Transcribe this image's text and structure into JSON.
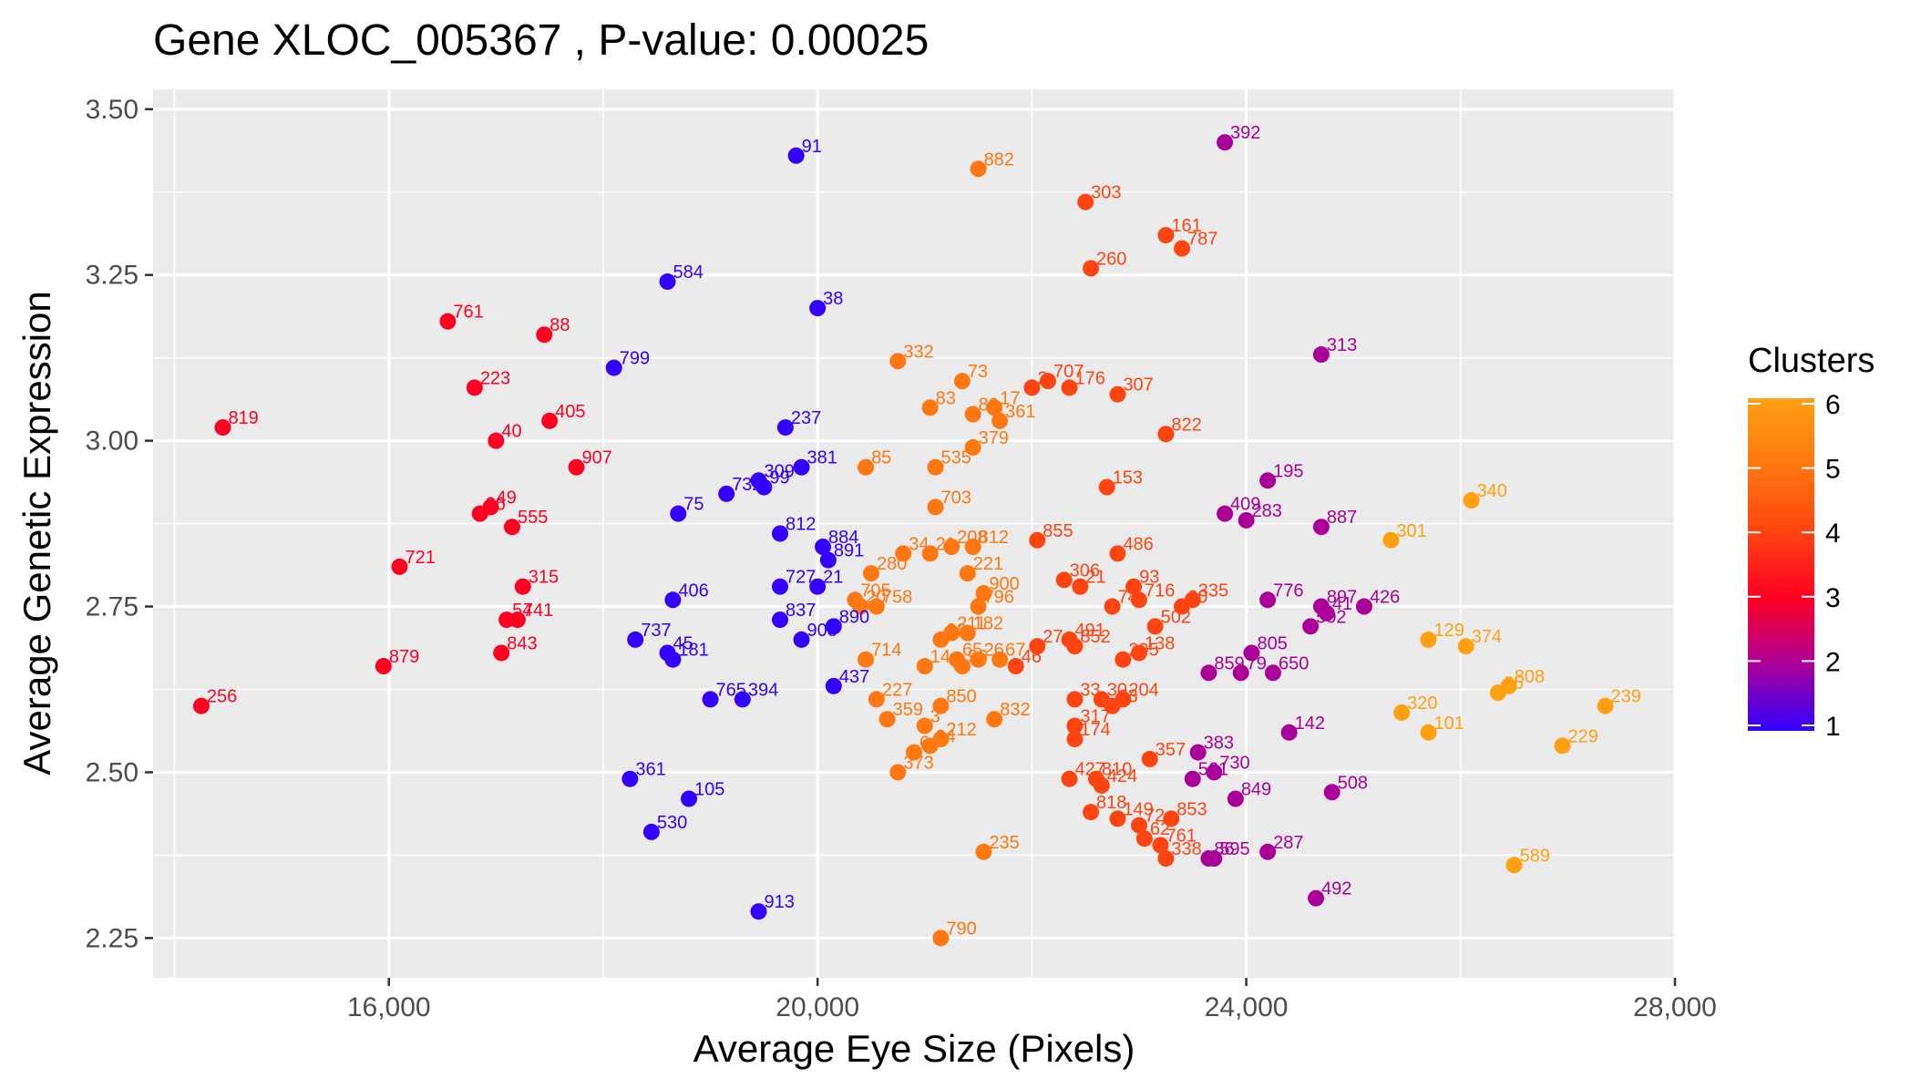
{
  "chart_data": {
    "type": "scatter",
    "title": "Gene XLOC_005367 , P-value: 0.00025",
    "xlabel": "Average Eye Size (Pixels)",
    "ylabel": "Average Genetic Expression",
    "xlim": [
      13800,
      28000
    ],
    "ylim": [
      2.19,
      3.53
    ],
    "x_ticks": [
      "16,000",
      "20,000",
      "24,000",
      "28,000"
    ],
    "y_ticks": [
      "2.25",
      "2.50",
      "2.75",
      "3.00",
      "3.25",
      "3.50"
    ],
    "grid": true,
    "legend": {
      "title": "Clusters",
      "position": "right",
      "ticks": [
        "1",
        "2",
        "3",
        "4",
        "5",
        "6"
      ],
      "colors": [
        "#3300ff",
        "#aa0099",
        "#ff0022",
        "#ff4411",
        "#ff7711",
        "#ffa011"
      ]
    },
    "points": [
      {
        "x": 19800,
        "y": 3.43,
        "label": "91",
        "cluster": 1
      },
      {
        "x": 18600,
        "y": 3.24,
        "label": "584",
        "cluster": 1
      },
      {
        "x": 20000,
        "y": 3.2,
        "label": "38",
        "cluster": 1
      },
      {
        "x": 18100,
        "y": 3.11,
        "label": "799",
        "cluster": 1
      },
      {
        "x": 19700,
        "y": 3.02,
        "label": "237",
        "cluster": 1
      },
      {
        "x": 19850,
        "y": 2.96,
        "label": "381",
        "cluster": 1
      },
      {
        "x": 19450,
        "y": 2.94,
        "label": "309",
        "cluster": 1
      },
      {
        "x": 19500,
        "y": 2.93,
        "label": "99",
        "cluster": 1
      },
      {
        "x": 19150,
        "y": 2.92,
        "label": "732",
        "cluster": 1
      },
      {
        "x": 18700,
        "y": 2.89,
        "label": "75",
        "cluster": 1
      },
      {
        "x": 19650,
        "y": 2.86,
        "label": "812",
        "cluster": 1
      },
      {
        "x": 20050,
        "y": 2.84,
        "label": "884",
        "cluster": 1
      },
      {
        "x": 20100,
        "y": 2.82,
        "label": "891",
        "cluster": 1
      },
      {
        "x": 19650,
        "y": 2.78,
        "label": "727",
        "cluster": 1
      },
      {
        "x": 20000,
        "y": 2.78,
        "label": "21",
        "cluster": 1
      },
      {
        "x": 18650,
        "y": 2.76,
        "label": "406",
        "cluster": 1
      },
      {
        "x": 19650,
        "y": 2.73,
        "label": "837",
        "cluster": 1
      },
      {
        "x": 20150,
        "y": 2.72,
        "label": "890",
        "cluster": 1
      },
      {
        "x": 19850,
        "y": 2.7,
        "label": "908",
        "cluster": 1
      },
      {
        "x": 18300,
        "y": 2.7,
        "label": "737",
        "cluster": 1
      },
      {
        "x": 18600,
        "y": 2.68,
        "label": "45",
        "cluster": 1
      },
      {
        "x": 18650,
        "y": 2.67,
        "label": "181",
        "cluster": 1
      },
      {
        "x": 20150,
        "y": 2.63,
        "label": "437",
        "cluster": 1
      },
      {
        "x": 19000,
        "y": 2.61,
        "label": "765",
        "cluster": 1
      },
      {
        "x": 19300,
        "y": 2.61,
        "label": "394",
        "cluster": 1
      },
      {
        "x": 18250,
        "y": 2.49,
        "label": "361",
        "cluster": 1
      },
      {
        "x": 18800,
        "y": 2.46,
        "label": "105",
        "cluster": 1
      },
      {
        "x": 18450,
        "y": 2.41,
        "label": "530",
        "cluster": 1
      },
      {
        "x": 19450,
        "y": 2.29,
        "label": "913",
        "cluster": 1
      },
      {
        "x": 23800,
        "y": 3.45,
        "label": "392",
        "cluster": 2
      },
      {
        "x": 24700,
        "y": 3.13,
        "label": "313",
        "cluster": 2
      },
      {
        "x": 24200,
        "y": 2.94,
        "label": "195",
        "cluster": 2
      },
      {
        "x": 23800,
        "y": 2.89,
        "label": "409",
        "cluster": 2
      },
      {
        "x": 24000,
        "y": 2.88,
        "label": "283",
        "cluster": 2
      },
      {
        "x": 24700,
        "y": 2.87,
        "label": "887",
        "cluster": 2
      },
      {
        "x": 24200,
        "y": 2.76,
        "label": "776",
        "cluster": 2
      },
      {
        "x": 24700,
        "y": 2.75,
        "label": "897",
        "cluster": 2
      },
      {
        "x": 24750,
        "y": 2.74,
        "label": "41",
        "cluster": 2
      },
      {
        "x": 25100,
        "y": 2.75,
        "label": "426",
        "cluster": 2
      },
      {
        "x": 24600,
        "y": 2.72,
        "label": "502",
        "cluster": 2
      },
      {
        "x": 24050,
        "y": 2.68,
        "label": "805",
        "cluster": 2
      },
      {
        "x": 23650,
        "y": 2.65,
        "label": "859",
        "cluster": 2
      },
      {
        "x": 23950,
        "y": 2.65,
        "label": "79",
        "cluster": 2
      },
      {
        "x": 24250,
        "y": 2.65,
        "label": "650",
        "cluster": 2
      },
      {
        "x": 24400,
        "y": 2.56,
        "label": "142",
        "cluster": 2
      },
      {
        "x": 23550,
        "y": 2.53,
        "label": "383",
        "cluster": 2
      },
      {
        "x": 23700,
        "y": 2.5,
        "label": "730",
        "cluster": 2
      },
      {
        "x": 23500,
        "y": 2.49,
        "label": "561",
        "cluster": 2
      },
      {
        "x": 24800,
        "y": 2.47,
        "label": "508",
        "cluster": 2
      },
      {
        "x": 23900,
        "y": 2.46,
        "label": "849",
        "cluster": 2
      },
      {
        "x": 24200,
        "y": 2.38,
        "label": "287",
        "cluster": 2
      },
      {
        "x": 23700,
        "y": 2.37,
        "label": "595",
        "cluster": 2
      },
      {
        "x": 23650,
        "y": 2.37,
        "label": "86",
        "cluster": 2
      },
      {
        "x": 24650,
        "y": 2.31,
        "label": "492",
        "cluster": 2
      },
      {
        "x": 16550,
        "y": 3.18,
        "label": "761",
        "cluster": 3
      },
      {
        "x": 17450,
        "y": 3.16,
        "label": "88",
        "cluster": 3
      },
      {
        "x": 16800,
        "y": 3.08,
        "label": "223",
        "cluster": 3
      },
      {
        "x": 17500,
        "y": 3.03,
        "label": "405",
        "cluster": 3
      },
      {
        "x": 14450,
        "y": 3.02,
        "label": "819",
        "cluster": 3
      },
      {
        "x": 17000,
        "y": 3.0,
        "label": "40",
        "cluster": 3
      },
      {
        "x": 17750,
        "y": 2.96,
        "label": "907",
        "cluster": 3
      },
      {
        "x": 16950,
        "y": 2.9,
        "label": "49",
        "cluster": 3
      },
      {
        "x": 16850,
        "y": 2.89,
        "label": "36",
        "cluster": 3
      },
      {
        "x": 17150,
        "y": 2.87,
        "label": "555",
        "cluster": 3
      },
      {
        "x": 16100,
        "y": 2.81,
        "label": "721",
        "cluster": 3
      },
      {
        "x": 17250,
        "y": 2.78,
        "label": "315",
        "cluster": 3
      },
      {
        "x": 17100,
        "y": 2.73,
        "label": "54",
        "cluster": 3
      },
      {
        "x": 17200,
        "y": 2.73,
        "label": "741",
        "cluster": 3
      },
      {
        "x": 17050,
        "y": 2.68,
        "label": "843",
        "cluster": 3
      },
      {
        "x": 15950,
        "y": 2.66,
        "label": "879",
        "cluster": 3
      },
      {
        "x": 14250,
        "y": 2.6,
        "label": "256",
        "cluster": 3
      },
      {
        "x": 22500,
        "y": 3.36,
        "label": "303",
        "cluster": 4
      },
      {
        "x": 23250,
        "y": 3.31,
        "label": "161",
        "cluster": 4
      },
      {
        "x": 23400,
        "y": 3.29,
        "label": "787",
        "cluster": 4
      },
      {
        "x": 22550,
        "y": 3.26,
        "label": "260",
        "cluster": 4
      },
      {
        "x": 22150,
        "y": 3.09,
        "label": "707",
        "cluster": 4
      },
      {
        "x": 22350,
        "y": 3.08,
        "label": "176",
        "cluster": 4
      },
      {
        "x": 22000,
        "y": 3.08,
        "label": "2",
        "cluster": 4
      },
      {
        "x": 22800,
        "y": 3.07,
        "label": "307",
        "cluster": 4
      },
      {
        "x": 23250,
        "y": 3.01,
        "label": "822",
        "cluster": 4
      },
      {
        "x": 22700,
        "y": 2.93,
        "label": "153",
        "cluster": 4
      },
      {
        "x": 22050,
        "y": 2.85,
        "label": "855",
        "cluster": 4
      },
      {
        "x": 22800,
        "y": 2.83,
        "label": "486",
        "cluster": 4
      },
      {
        "x": 22300,
        "y": 2.79,
        "label": "306",
        "cluster": 4
      },
      {
        "x": 22450,
        "y": 2.78,
        "label": "21",
        "cluster": 4
      },
      {
        "x": 22950,
        "y": 2.78,
        "label": "93",
        "cluster": 4
      },
      {
        "x": 23000,
        "y": 2.76,
        "label": "716",
        "cluster": 4
      },
      {
        "x": 23500,
        "y": 2.76,
        "label": "335",
        "cluster": 4
      },
      {
        "x": 22750,
        "y": 2.75,
        "label": "74",
        "cluster": 4
      },
      {
        "x": 23400,
        "y": 2.75,
        "label": "60",
        "cluster": 4
      },
      {
        "x": 23150,
        "y": 2.72,
        "label": "502",
        "cluster": 4
      },
      {
        "x": 22350,
        "y": 2.7,
        "label": "491",
        "cluster": 4
      },
      {
        "x": 22400,
        "y": 2.69,
        "label": "852",
        "cluster": 4
      },
      {
        "x": 22050,
        "y": 2.69,
        "label": "27",
        "cluster": 4
      },
      {
        "x": 23000,
        "y": 2.68,
        "label": "138",
        "cluster": 4
      },
      {
        "x": 22850,
        "y": 2.67,
        "label": "295",
        "cluster": 4
      },
      {
        "x": 21850,
        "y": 2.66,
        "label": "46",
        "cluster": 4
      },
      {
        "x": 22400,
        "y": 2.61,
        "label": "33",
        "cluster": 4
      },
      {
        "x": 22650,
        "y": 2.61,
        "label": "30",
        "cluster": 4
      },
      {
        "x": 22850,
        "y": 2.61,
        "label": "204",
        "cluster": 4
      },
      {
        "x": 22750,
        "y": 2.6,
        "label": "03",
        "cluster": 4
      },
      {
        "x": 22400,
        "y": 2.57,
        "label": "317",
        "cluster": 4
      },
      {
        "x": 22400,
        "y": 2.55,
        "label": "174",
        "cluster": 4
      },
      {
        "x": 23100,
        "y": 2.52,
        "label": "357",
        "cluster": 4
      },
      {
        "x": 22350,
        "y": 2.49,
        "label": "427",
        "cluster": 4
      },
      {
        "x": 22600,
        "y": 2.49,
        "label": "810",
        "cluster": 4
      },
      {
        "x": 22650,
        "y": 2.48,
        "label": "424",
        "cluster": 4
      },
      {
        "x": 22550,
        "y": 2.44,
        "label": "818",
        "cluster": 4
      },
      {
        "x": 22800,
        "y": 2.43,
        "label": "149",
        "cluster": 4
      },
      {
        "x": 23000,
        "y": 2.42,
        "label": "72",
        "cluster": 4
      },
      {
        "x": 23300,
        "y": 2.43,
        "label": "853",
        "cluster": 4
      },
      {
        "x": 23050,
        "y": 2.4,
        "label": "62",
        "cluster": 4
      },
      {
        "x": 23200,
        "y": 2.39,
        "label": "761",
        "cluster": 4
      },
      {
        "x": 23250,
        "y": 2.37,
        "label": "338",
        "cluster": 4
      },
      {
        "x": 21500,
        "y": 3.41,
        "label": "882",
        "cluster": 5
      },
      {
        "x": 20750,
        "y": 3.12,
        "label": "332",
        "cluster": 5
      },
      {
        "x": 21350,
        "y": 3.09,
        "label": "73",
        "cluster": 5
      },
      {
        "x": 21050,
        "y": 3.05,
        "label": "83",
        "cluster": 5
      },
      {
        "x": 21650,
        "y": 3.05,
        "label": "17",
        "cluster": 5
      },
      {
        "x": 21450,
        "y": 3.04,
        "label": "80",
        "cluster": 5
      },
      {
        "x": 21700,
        "y": 3.03,
        "label": "361",
        "cluster": 5
      },
      {
        "x": 21450,
        "y": 2.99,
        "label": "379",
        "cluster": 5
      },
      {
        "x": 20450,
        "y": 2.96,
        "label": "85",
        "cluster": 5
      },
      {
        "x": 21100,
        "y": 2.96,
        "label": "535",
        "cluster": 5
      },
      {
        "x": 21100,
        "y": 2.9,
        "label": "703",
        "cluster": 5
      },
      {
        "x": 21450,
        "y": 2.84,
        "label": "812",
        "cluster": 5
      },
      {
        "x": 21250,
        "y": 2.84,
        "label": "208",
        "cluster": 5
      },
      {
        "x": 21050,
        "y": 2.83,
        "label": "21",
        "cluster": 5
      },
      {
        "x": 20800,
        "y": 2.83,
        "label": "34",
        "cluster": 5
      },
      {
        "x": 20500,
        "y": 2.8,
        "label": "280",
        "cluster": 5
      },
      {
        "x": 21400,
        "y": 2.8,
        "label": "221",
        "cluster": 5
      },
      {
        "x": 21550,
        "y": 2.77,
        "label": "900",
        "cluster": 5
      },
      {
        "x": 20350,
        "y": 2.76,
        "label": "705",
        "cluster": 5
      },
      {
        "x": 20550,
        "y": 2.75,
        "label": "758",
        "cluster": 5
      },
      {
        "x": 20400,
        "y": 2.75,
        "label": "20",
        "cluster": 5
      },
      {
        "x": 21500,
        "y": 2.75,
        "label": "796",
        "cluster": 5
      },
      {
        "x": 21250,
        "y": 2.71,
        "label": "211",
        "cluster": 5
      },
      {
        "x": 21400,
        "y": 2.71,
        "label": "182",
        "cluster": 5
      },
      {
        "x": 21150,
        "y": 2.7,
        "label": "22",
        "cluster": 5
      },
      {
        "x": 20450,
        "y": 2.67,
        "label": "714",
        "cluster": 5
      },
      {
        "x": 21000,
        "y": 2.66,
        "label": "14",
        "cluster": 5
      },
      {
        "x": 21300,
        "y": 2.67,
        "label": "65",
        "cluster": 5
      },
      {
        "x": 21500,
        "y": 2.67,
        "label": "26",
        "cluster": 5
      },
      {
        "x": 21700,
        "y": 2.67,
        "label": "67",
        "cluster": 5
      },
      {
        "x": 21350,
        "y": 2.66,
        "label": "96",
        "cluster": 5
      },
      {
        "x": 20550,
        "y": 2.61,
        "label": "227",
        "cluster": 5
      },
      {
        "x": 21150,
        "y": 2.6,
        "label": "850",
        "cluster": 5
      },
      {
        "x": 21650,
        "y": 2.58,
        "label": "832",
        "cluster": 5
      },
      {
        "x": 20650,
        "y": 2.58,
        "label": "359",
        "cluster": 5
      },
      {
        "x": 21000,
        "y": 2.57,
        "label": "3",
        "cluster": 5
      },
      {
        "x": 21150,
        "y": 2.55,
        "label": "212",
        "cluster": 5
      },
      {
        "x": 21050,
        "y": 2.54,
        "label": "04",
        "cluster": 5
      },
      {
        "x": 20900,
        "y": 2.53,
        "label": "6",
        "cluster": 5
      },
      {
        "x": 20750,
        "y": 2.5,
        "label": "373",
        "cluster": 5
      },
      {
        "x": 21550,
        "y": 2.38,
        "label": "235",
        "cluster": 5
      },
      {
        "x": 21150,
        "y": 2.25,
        "label": "790",
        "cluster": 5
      },
      {
        "x": 26100,
        "y": 2.91,
        "label": "340",
        "cluster": 6
      },
      {
        "x": 25350,
        "y": 2.85,
        "label": "301",
        "cluster": 6
      },
      {
        "x": 25700,
        "y": 2.7,
        "label": "129",
        "cluster": 6
      },
      {
        "x": 26050,
        "y": 2.69,
        "label": "374",
        "cluster": 6
      },
      {
        "x": 26450,
        "y": 2.63,
        "label": "808",
        "cluster": 6
      },
      {
        "x": 26350,
        "y": 2.62,
        "label": "35",
        "cluster": 6
      },
      {
        "x": 27350,
        "y": 2.6,
        "label": "239",
        "cluster": 6
      },
      {
        "x": 25450,
        "y": 2.59,
        "label": "320",
        "cluster": 6
      },
      {
        "x": 25700,
        "y": 2.56,
        "label": "101",
        "cluster": 6
      },
      {
        "x": 26950,
        "y": 2.54,
        "label": "229",
        "cluster": 6
      },
      {
        "x": 26500,
        "y": 2.36,
        "label": "589",
        "cluster": 6
      }
    ]
  }
}
